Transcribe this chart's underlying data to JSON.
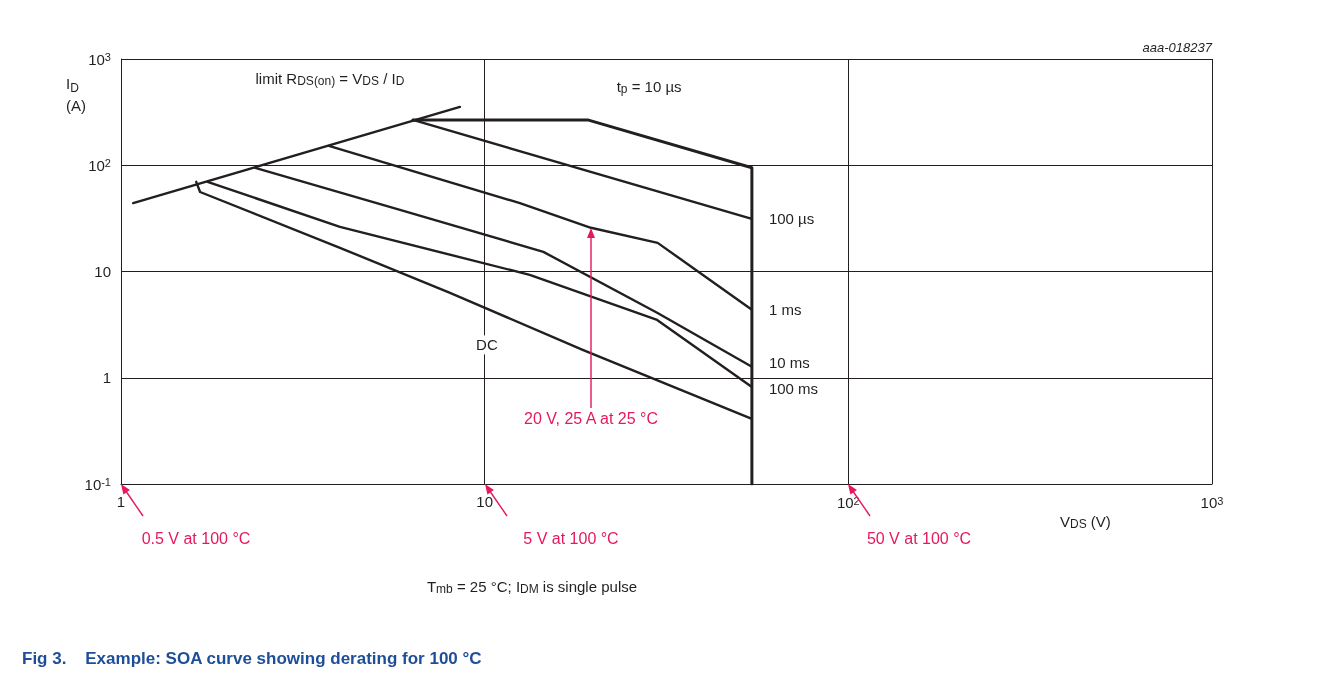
{
  "chart_data": {
    "type": "line",
    "title": "Fig 3.    Example: SOA curve showing derating for 100 °C",
    "xlabel": "V$_{DS}$ (V)",
    "ylabel": "I$_{D}$ (A)",
    "log": "xy",
    "grid": true,
    "legend": false,
    "line_style": "solid",
    "xlim": [
      1,
      1000
    ],
    "ylim": [
      0.1,
      1000
    ],
    "xticks": [
      1,
      10,
      {
        "value": 100,
        "label": "10$^{2}$"
      },
      {
        "value": 1000,
        "label": "10$^{3}$"
      }
    ],
    "yticks": [
      {
        "value": 0.1,
        "label": "10$^{-1}$"
      },
      1,
      10,
      {
        "value": 100,
        "label": "10$^{2}$"
      },
      {
        "value": 1000,
        "label": "10$^{3}$"
      }
    ],
    "series": [
      {
        "name": "limit R$_{DS(on)}$ = V$_{DS}$ / I$_{D}$",
        "color": "#231f20",
        "x": [
          1.08,
          8.55
        ],
        "values": [
          44,
          354
        ]
      },
      {
        "name": "t$_{p}$ = 10 µs",
        "color": "#231f20",
        "x": [
          6.35,
          19.2,
          54.3,
          54.3
        ],
        "values": [
          267,
          267,
          94.6,
          0.1
        ]
      },
      {
        "name": "100 µs",
        "color": "#231f20",
        "x": [
          6.35,
          54.3
        ],
        "values": [
          267,
          31.3
        ]
      },
      {
        "name": "1 ms",
        "color": "#231f20",
        "x": [
          3.73,
          12.5,
          19.6,
          29.9,
          54.3
        ],
        "values": [
          152,
          44,
          25.8,
          18.6,
          4.37
        ]
      },
      {
        "name": "10 ms",
        "color": "#231f20",
        "x": [
          2.34,
          5.85,
          14.5,
          29.8,
          54.3
        ],
        "values": [
          94.6,
          38,
          15.3,
          4.09,
          1.27
        ]
      },
      {
        "name": "100 ms",
        "color": "#231f20",
        "x": [
          1.73,
          4.0,
          13.3,
          29.8,
          54.3
        ],
        "values": [
          69.8,
          26.3,
          9.3,
          3.5,
          0.82
        ]
      },
      {
        "name": "DC",
        "color": "#231f20",
        "x": [
          1.61,
          1.65,
          4.0,
          8.03,
          18.6,
          54.3
        ],
        "values": [
          69.8,
          56,
          16.7,
          6.3,
          1.83,
          0.41
        ]
      }
    ],
    "annotations": [
      "aaa-018237",
      "20 V, 25 A at 25 °C",
      "0.5 V at 100 °C",
      "5 V at 100 °C",
      "50 V at 100 °C",
      "T$_{mb}$ = 25 °C; I$_{DM}$ is single pulse"
    ]
  }
}
